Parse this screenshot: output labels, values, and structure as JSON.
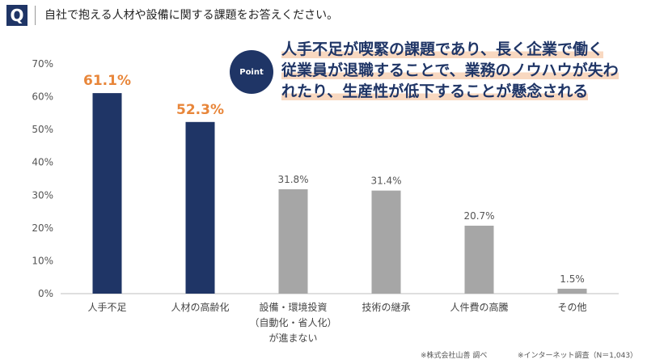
{
  "header": {
    "q_label": "Q",
    "question": "自社で抱える人材や設備に関する課題をお答えください。"
  },
  "point": {
    "badge": "Point",
    "line1": "人手不足が喫緊の課題であり、長く企業で働く",
    "line2": "従業員が退職することで、業務のノウハウが失わ",
    "line3": "れたり、生産性が低下することが懸念される"
  },
  "footnotes": {
    "source": "※株式会社山善 調べ",
    "survey": "※インターネット調査（N＝1,043）"
  },
  "colors": {
    "highlight_bar": "#1f3566",
    "normal_bar": "#a6a6a6",
    "highlight_label": "#e8863a",
    "normal_label": "#555555"
  },
  "chart_data": {
    "type": "bar",
    "categories": [
      [
        "人手不足"
      ],
      [
        "人材の高齢化"
      ],
      [
        "設備・環境投資",
        "（自動化・省人化）",
        "が進まない"
      ],
      [
        "技術の継承"
      ],
      [
        "人件費の高騰"
      ],
      [
        "その他"
      ]
    ],
    "values": [
      61.1,
      52.3,
      31.8,
      31.4,
      20.7,
      1.5
    ],
    "value_labels": [
      "61.1%",
      "52.3%",
      "31.8%",
      "31.4%",
      "20.7%",
      "1.5%"
    ],
    "highlighted": [
      true,
      true,
      false,
      false,
      false,
      false
    ],
    "y_ticks": [
      "0%",
      "10%",
      "20%",
      "30%",
      "40%",
      "50%",
      "60%",
      "70%"
    ],
    "ylim": [
      0,
      70
    ],
    "grid": false
  }
}
